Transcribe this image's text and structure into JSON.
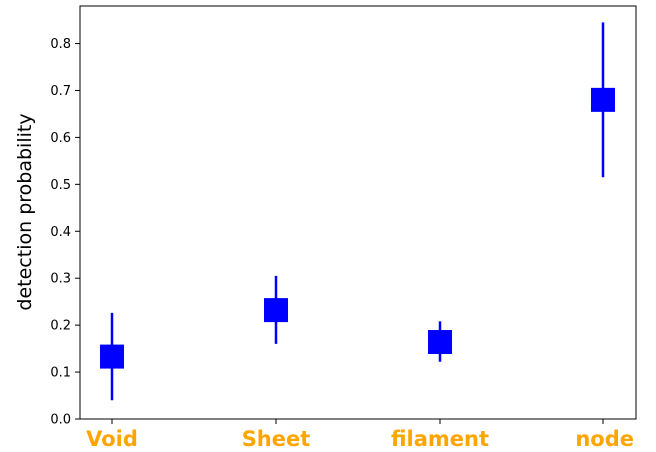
{
  "chart_data": {
    "type": "scatter",
    "title": "",
    "xlabel": "",
    "ylabel": "detection probability",
    "categories": [
      "Void",
      "Sheet",
      "filament",
      "node"
    ],
    "series": [
      {
        "values": [
          0.133,
          0.232,
          0.164,
          0.68
        ],
        "err_low": [
          0.04,
          0.16,
          0.122,
          0.515
        ],
        "err_high": [
          0.226,
          0.305,
          0.208,
          0.845
        ]
      }
    ],
    "ylim": [
      0.0,
      0.88
    ],
    "yticks": [
      "0.0",
      "0.1",
      "0.2",
      "0.3",
      "0.4",
      "0.5",
      "0.6",
      "0.7",
      "0.8"
    ],
    "grid": false,
    "marker": "square",
    "marker_color": "#0000ff",
    "category_label_color": "#ffa500"
  }
}
